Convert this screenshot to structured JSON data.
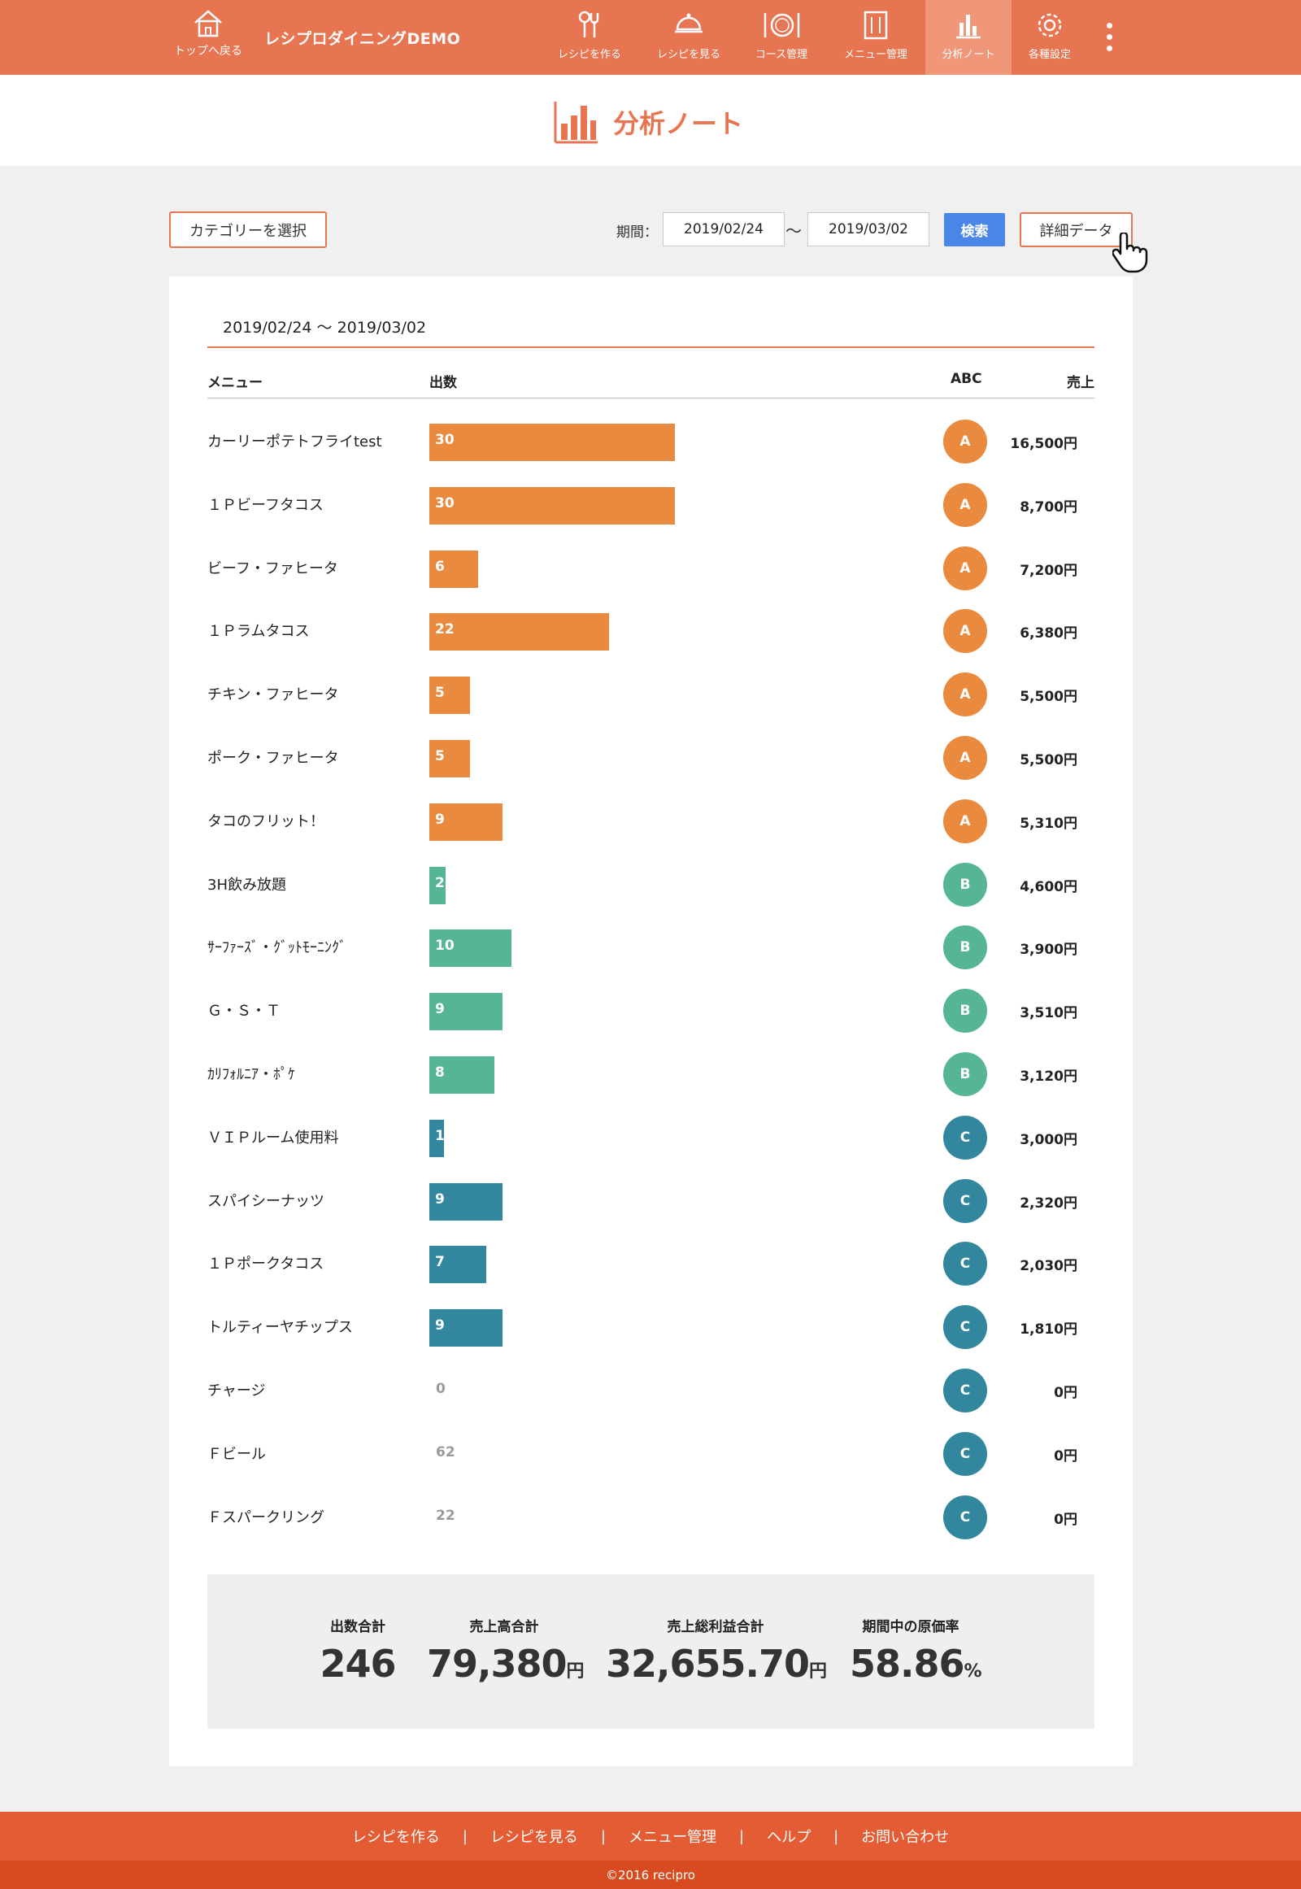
{
  "header": {
    "home_label": "トップへ戻る",
    "brand": "レシプロダイニングDEMO",
    "nav": [
      {
        "label": "レシピを作る",
        "icon": "cooking-utensils-icon"
      },
      {
        "label": "レシピを見る",
        "icon": "cloche-icon"
      },
      {
        "label": "コース管理",
        "icon": "plate-cutlery-icon"
      },
      {
        "label": "メニュー管理",
        "icon": "menu-card-icon"
      },
      {
        "label": "分析ノート",
        "icon": "bar-chart-icon",
        "active": true
      },
      {
        "label": "各種設定",
        "icon": "gear-icon"
      }
    ]
  },
  "page": {
    "title": "分析ノート"
  },
  "controls": {
    "category_button": "カテゴリーを選択",
    "period_label": "期間：",
    "date_from": "2019/02/24",
    "date_separator": "〜",
    "date_to": "2019/03/02",
    "search_button": "検索",
    "detail_button": "詳細データ"
  },
  "table": {
    "range_text": "2019/02/24 〜 2019/03/02",
    "headers": {
      "menu": "メニュー",
      "count": "出数",
      "abc": "ABC",
      "sales": "売上"
    },
    "rows": [
      {
        "name": "カーリーポテトフライtest",
        "count": "30",
        "rank": "A",
        "sales": "16,500円"
      },
      {
        "name": "１Ｐビーフタコス",
        "count": "30",
        "rank": "A",
        "sales": "8,700円"
      },
      {
        "name": "ビーフ・ファヒータ",
        "count": "6",
        "rank": "A",
        "sales": "7,200円"
      },
      {
        "name": "１Ｐラムタコス",
        "count": "22",
        "rank": "A",
        "sales": "6,380円"
      },
      {
        "name": "チキン・ファヒータ",
        "count": "5",
        "rank": "A",
        "sales": "5,500円"
      },
      {
        "name": "ポーク・ファヒータ",
        "count": "5",
        "rank": "A",
        "sales": "5,500円"
      },
      {
        "name": "タコのフリット！",
        "count": "9",
        "rank": "A",
        "sales": "5,310円"
      },
      {
        "name": "3H飲み放題",
        "count": "2",
        "rank": "B",
        "sales": "4,600円"
      },
      {
        "name": "ｻｰﾌｧｰｽﾞ・ｸﾞｯﾄﾓｰﾆﾝｸﾞ",
        "count": "10",
        "rank": "B",
        "sales": "3,900円"
      },
      {
        "name": "Ｇ・Ｓ・Ｔ",
        "count": "9",
        "rank": "B",
        "sales": "3,510円"
      },
      {
        "name": "ｶﾘﾌｫﾙﾆｱ・ﾎﾟｹ",
        "count": "8",
        "rank": "B",
        "sales": "3,120円"
      },
      {
        "name": "ＶＩＰルーム使用料",
        "count": "1",
        "rank": "C",
        "sales": "3,000円"
      },
      {
        "name": "スパイシーナッツ",
        "count": "9",
        "rank": "C",
        "sales": "2,320円"
      },
      {
        "name": "１Ｐポークタコス",
        "count": "7",
        "rank": "C",
        "sales": "2,030円"
      },
      {
        "name": "トルティーヤチップス",
        "count": "9",
        "rank": "C",
        "sales": "1,810円"
      },
      {
        "name": "チャージ",
        "count": "0",
        "rank": "C",
        "sales": "0円"
      },
      {
        "name": "Ｆビール",
        "count": "62",
        "rank": "C",
        "sales": "0円"
      },
      {
        "name": "Ｆスパークリング",
        "count": "22",
        "rank": "C",
        "sales": "0円"
      }
    ]
  },
  "summary": {
    "count_label": "出数合計",
    "count_value": "246",
    "sales_label": "売上高合計",
    "sales_value": "79,380",
    "sales_unit": "円",
    "profit_label": "売上総利益合計",
    "profit_value": "32,655.70",
    "profit_unit": "円",
    "cost_label": "期間中の原価率",
    "cost_value": "58.86",
    "cost_unit": "%"
  },
  "footer": {
    "links": [
      "レシピを作る",
      "レシピを見る",
      "メニュー管理",
      "ヘルプ",
      "お問い合わせ"
    ],
    "copyright": "©2016 recipro"
  },
  "colors": {
    "brand": "#e87552",
    "rank_A": "#ea8a3e",
    "rank_B": "#56b595",
    "rank_C": "#32879f",
    "search": "#4a86e8"
  }
}
